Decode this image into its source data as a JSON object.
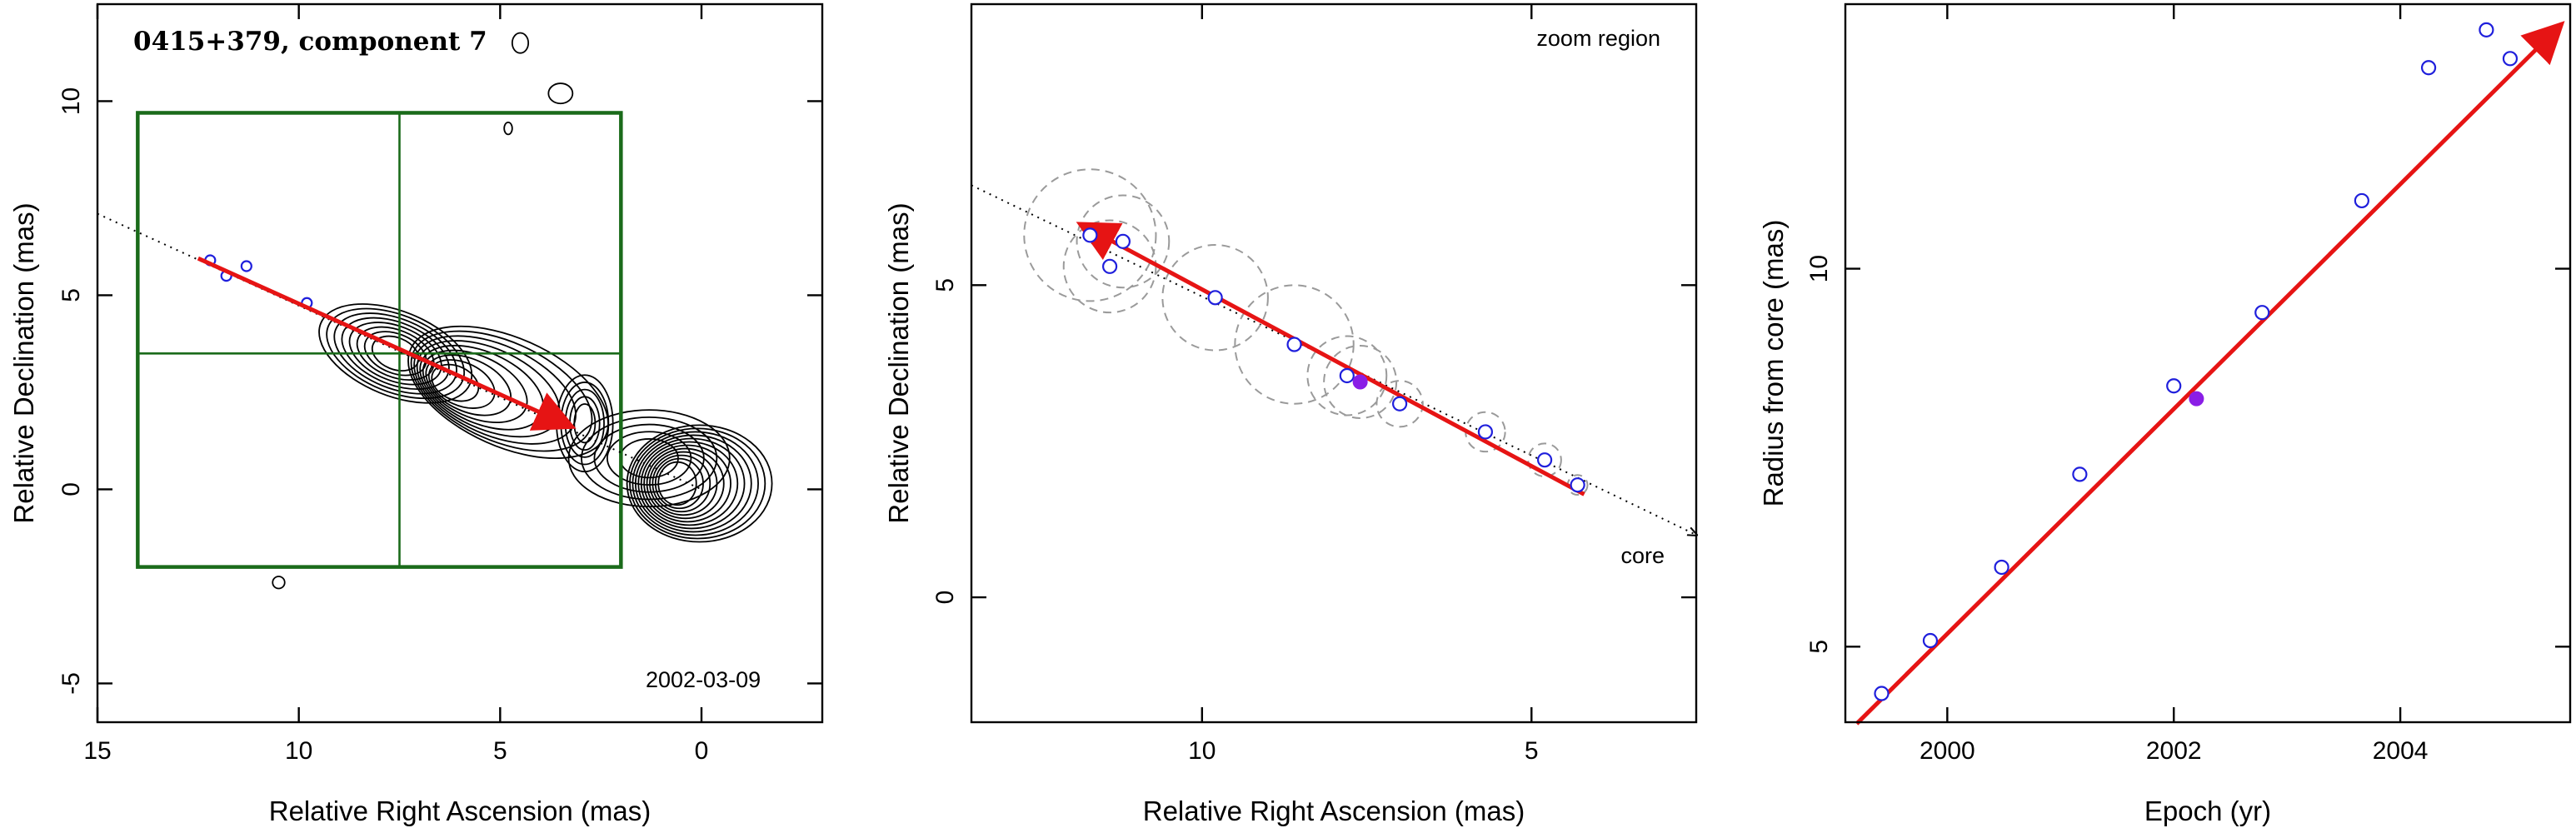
{
  "chart_data": [
    {
      "type": "contour",
      "title": "0415+379, component 7",
      "annotation": "2002-03-09",
      "xlabel": "Relative Right Ascension (mas)",
      "ylabel": "Relative Declination (mas)",
      "xlim": [
        15,
        -3
      ],
      "ylim": [
        -6,
        12.5
      ],
      "xticks": [
        15,
        10,
        5,
        0
      ],
      "yticks": [
        -5,
        0,
        5,
        10
      ],
      "zoom_box": {
        "ra": [
          14,
          2
        ],
        "dec": [
          -2,
          9.7
        ],
        "divider_ra": 7.5,
        "divider_dec": 3.5
      },
      "points": [
        [
          12.2,
          5.9
        ],
        [
          11.8,
          5.5
        ],
        [
          11.3,
          5.75
        ],
        [
          9.8,
          4.8
        ]
      ],
      "fit_line": {
        "from": [
          12.5,
          5.95
        ],
        "to": [
          3.3,
          1.65
        ]
      },
      "dotted_line": {
        "from": [
          15,
          7.1
        ],
        "to": [
          0,
          0
        ]
      }
    },
    {
      "type": "scatter",
      "annotation_top": "zoom region",
      "annotation_core": "core",
      "xlabel": "Relative Right Ascension (mas)",
      "ylabel": "Relative Declination (mas)",
      "xlim": [
        13.5,
        2.5
      ],
      "ylim": [
        -2,
        9.5
      ],
      "xticks": [
        10,
        5
      ],
      "yticks": [
        0,
        5
      ],
      "points": [
        {
          "x": 11.7,
          "y": 5.8,
          "r": 1.0
        },
        {
          "x": 11.4,
          "y": 5.3,
          "r": 0.7
        },
        {
          "x": 11.2,
          "y": 5.7,
          "r": 0.7
        },
        {
          "x": 9.8,
          "y": 4.8,
          "r": 0.8
        },
        {
          "x": 8.6,
          "y": 4.05,
          "r": 0.9
        },
        {
          "x": 7.8,
          "y": 3.55,
          "r": 0.6
        },
        {
          "x": 7.0,
          "y": 3.1,
          "r": 0.35
        },
        {
          "x": 5.7,
          "y": 2.65,
          "r": 0.3
        },
        {
          "x": 4.8,
          "y": 2.2,
          "r": 0.25
        },
        {
          "x": 4.3,
          "y": 1.8,
          "r": 0.15
        }
      ],
      "highlight_point": {
        "x": 7.6,
        "y": 3.45
      },
      "fit_line": {
        "from": [
          4.2,
          1.65
        ],
        "to": [
          11.8,
          5.95
        ]
      },
      "dotted_line": {
        "from": [
          13.5,
          6.6
        ],
        "to": [
          2.5,
          1.0
        ]
      }
    },
    {
      "type": "scatter",
      "xlabel": "Epoch (yr)",
      "ylabel": "Radius from core (mas)",
      "xlim": [
        1999.1,
        2005.5
      ],
      "ylim": [
        4,
        13.5
      ],
      "xticks": [
        2000,
        2002,
        2004
      ],
      "yticks": [
        5,
        10
      ],
      "points": [
        [
          1999.42,
          4.38
        ],
        [
          1999.85,
          5.08
        ],
        [
          2000.48,
          6.05
        ],
        [
          2001.17,
          7.28
        ],
        [
          2002.0,
          8.45
        ],
        [
          2002.78,
          9.42
        ],
        [
          2003.66,
          10.9
        ],
        [
          2004.25,
          12.66
        ],
        [
          2004.76,
          13.16
        ],
        [
          2004.97,
          12.78
        ]
      ],
      "highlight_point": [
        2002.2,
        8.28
      ],
      "fit_line": {
        "from": [
          1999.2,
          3.98
        ],
        "to": [
          2005.4,
          13.2
        ]
      }
    }
  ]
}
